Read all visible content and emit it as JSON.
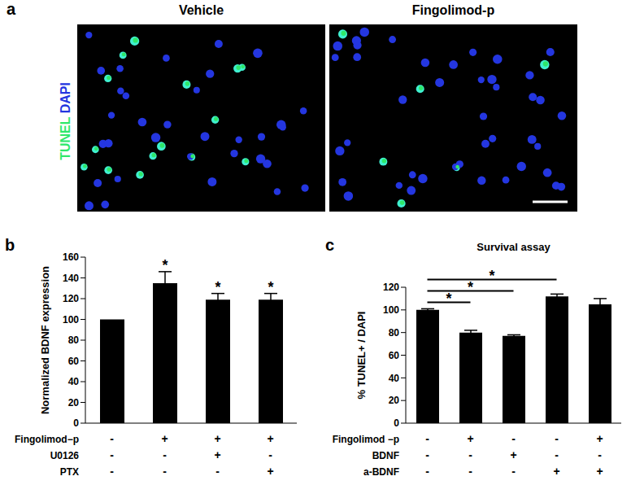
{
  "panel_a": {
    "label": "a",
    "images": [
      {
        "title": "Vehicle"
      },
      {
        "title": "Fingolimod-p"
      }
    ],
    "stains": [
      {
        "name": "TUNEL",
        "color": "#2ee86a"
      },
      {
        "name": "DAPI",
        "color": "#2436e0"
      }
    ]
  },
  "chart_data": [
    {
      "panel": "b",
      "type": "bar",
      "y_label": "Normalized BDNF expression",
      "categories": [
        null,
        null,
        null,
        null
      ],
      "values": [
        100,
        135,
        119,
        119
      ],
      "errors": [
        0,
        11,
        6,
        6
      ],
      "significance": [
        null,
        "*",
        "*",
        "*"
      ],
      "conditions": [
        {
          "name": "Fingolimod−p",
          "values": [
            "-",
            "+",
            "+",
            "+"
          ]
        },
        {
          "name": "U0126",
          "values": [
            "-",
            "-",
            "+",
            "-"
          ]
        },
        {
          "name": "PTX",
          "values": [
            "-",
            "-",
            "-",
            "+"
          ]
        }
      ],
      "color": "#000000",
      "ylim": [
        0,
        160
      ],
      "yticks": [
        0,
        20,
        40,
        60,
        80,
        100,
        120,
        140,
        160
      ],
      "grid": false
    },
    {
      "panel": "c",
      "type": "bar",
      "title": "Survival assay",
      "y_label": "% TUNEL+ / DAPI",
      "categories": [
        null,
        null,
        null,
        null,
        null
      ],
      "values": [
        100,
        80,
        77,
        112,
        105
      ],
      "errors": [
        1,
        2,
        1,
        2,
        5
      ],
      "comparisons": [
        {
          "from": 0,
          "to": 1,
          "label": "*"
        },
        {
          "from": 0,
          "to": 2,
          "label": "*"
        },
        {
          "from": 0,
          "to": 3,
          "label": "*"
        }
      ],
      "conditions": [
        {
          "name": "Fingolimod −p",
          "values": [
            "-",
            "+",
            "-",
            "-",
            "+"
          ]
        },
        {
          "name": "BDNF",
          "values": [
            "-",
            "-",
            "+",
            "-",
            "-"
          ]
        },
        {
          "name": "a-BDNF",
          "values": [
            "-",
            "-",
            "-",
            "+",
            "+"
          ]
        }
      ],
      "color": "#000000",
      "ylim": [
        0,
        120
      ],
      "yticks": [
        0,
        20,
        40,
        60,
        80,
        100,
        120
      ],
      "grid": false
    }
  ]
}
